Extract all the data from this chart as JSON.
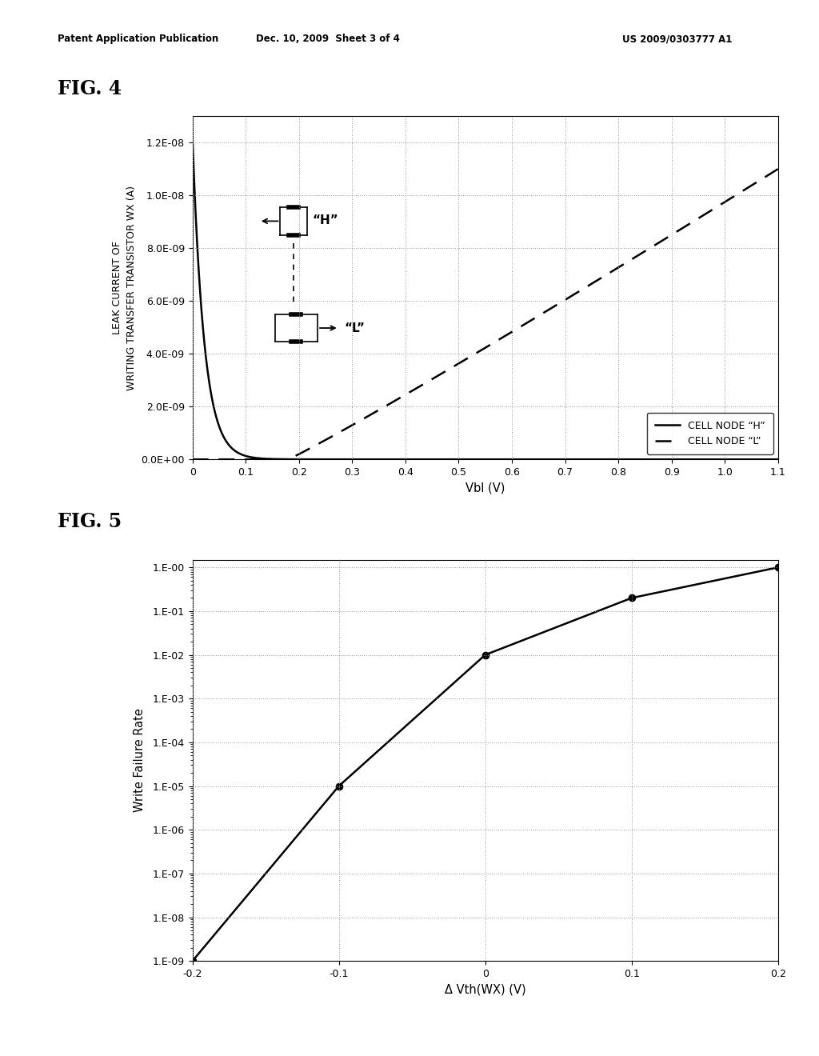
{
  "header_left": "Patent Application Publication",
  "header_mid": "Dec. 10, 2009  Sheet 3 of 4",
  "header_right": "US 2009/0303777 A1",
  "fig4_label": "FIG. 4",
  "fig5_label": "FIG. 5",
  "fig4": {
    "xlabel": "Vbl (V)",
    "ylabel": "LEAK CURRENT OF\nWRITING TRANSFER TRANSISTOR WX (A)",
    "xlim": [
      0,
      1.1
    ],
    "ylim": [
      0,
      1.3e-08
    ],
    "xticks": [
      0,
      0.1,
      0.2,
      0.3,
      0.4,
      0.5,
      0.6,
      0.7,
      0.8,
      0.9,
      1.0,
      1.1
    ],
    "yticks": [
      0,
      2e-09,
      4e-09,
      6e-09,
      8e-09,
      1e-08,
      1.2e-08
    ],
    "ytick_labels": [
      "0.0E+00",
      "2.0E-09",
      "4.0E-09",
      "6.0E-09",
      "8.0E-09",
      "1.0E-08",
      "1.2E-08"
    ],
    "legend_H": "CELL NODE “H”",
    "legend_L": "CELL NODE “L”",
    "annotation_H": "“H”",
    "annotation_L": "“L”",
    "bg_color": "#ffffff",
    "grid_color": "#888888"
  },
  "fig5": {
    "xlabel": "Δ Vth(WX) (V)",
    "ylabel": "Write Failure Rate",
    "xlim": [
      -0.2,
      0.2
    ],
    "xticks": [
      -0.2,
      -0.1,
      0.0,
      0.1,
      0.2
    ],
    "ytick_labels": [
      "1.E-09",
      "1.E-08",
      "1.E-07",
      "1.E-06",
      "1.E-05",
      "1.E-04",
      "1.E-03",
      "1.E-02",
      "1.E-01",
      "1.E-00"
    ],
    "data_x": [
      -0.2,
      -0.1,
      0.0,
      0.1,
      0.2
    ],
    "data_y": [
      1e-09,
      1e-05,
      0.01,
      0.2,
      1.0
    ],
    "bg_color": "#ffffff",
    "grid_color": "#888888"
  }
}
